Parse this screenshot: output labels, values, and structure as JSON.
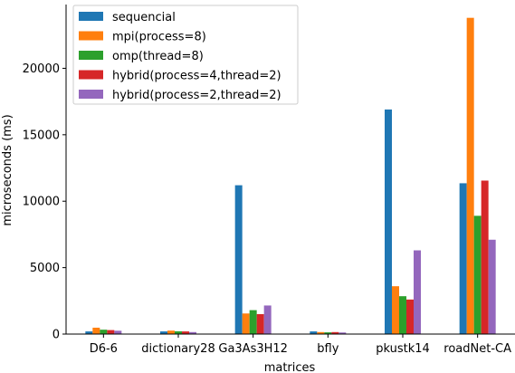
{
  "chart_data": {
    "type": "bar",
    "title": "",
    "xlabel": "matrices",
    "ylabel": "microseconds (ms)",
    "categories": [
      "D6-6",
      "dictionary28",
      "Ga3As3H12",
      "bfly",
      "pkustk14",
      "roadNet-CA"
    ],
    "ylim": [
      0,
      24800
    ],
    "yticks": [
      0,
      5000,
      10000,
      15000,
      20000
    ],
    "grid": false,
    "legend_position": "top-left",
    "series": [
      {
        "name": "sequencial",
        "color": "#1f77b4",
        "values": [
          200,
          200,
          11200,
          200,
          16900,
          11350
        ]
      },
      {
        "name": "mpi(process=8)",
        "color": "#ff7f0e",
        "values": [
          480,
          260,
          1550,
          150,
          3600,
          23800
        ]
      },
      {
        "name": "omp(thread=8)",
        "color": "#2ca02c",
        "values": [
          330,
          210,
          1800,
          130,
          2850,
          8900
        ]
      },
      {
        "name": "hybrid(process=4,thread=2)",
        "color": "#d62728",
        "values": [
          300,
          200,
          1500,
          150,
          2600,
          11550
        ]
      },
      {
        "name": "hybrid(process=2,thread=2)",
        "color": "#9467bd",
        "values": [
          250,
          150,
          2150,
          120,
          6300,
          7100
        ]
      }
    ]
  }
}
